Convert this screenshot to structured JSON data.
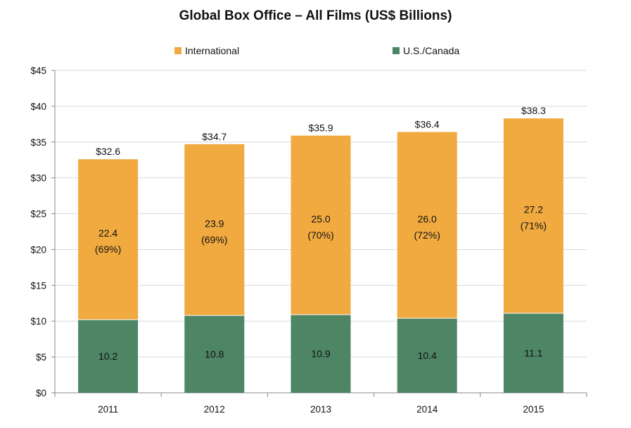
{
  "chart_data": {
    "type": "bar",
    "stacked": true,
    "title": "Global Box Office – All Films (US$ Billions)",
    "xlabel": "",
    "ylabel": "",
    "categories": [
      "2011",
      "2012",
      "2013",
      "2014",
      "2015"
    ],
    "ylim": [
      0,
      45
    ],
    "y_ticks": [
      0,
      5,
      10,
      15,
      20,
      25,
      30,
      35,
      40,
      45
    ],
    "y_tick_labels": [
      "$0",
      "$5",
      "$10",
      "$15",
      "$20",
      "$25",
      "$30",
      "$35",
      "$40",
      "$45"
    ],
    "series": [
      {
        "name": "U.S./Canada",
        "color": "#4e8565",
        "values": [
          10.2,
          10.8,
          10.9,
          10.4,
          11.1
        ],
        "labels": [
          "10.2",
          "10.8",
          "10.9",
          "10.4",
          "11.1"
        ]
      },
      {
        "name": "International",
        "color": "#f0aa40",
        "values": [
          22.4,
          23.9,
          25.0,
          26.0,
          27.2
        ],
        "labels": [
          "22.4",
          "23.9",
          "25.0",
          "26.0",
          "27.2"
        ],
        "share_labels": [
          "(69%)",
          "(69%)",
          "(70%)",
          "(72%)",
          "(71%)"
        ]
      }
    ],
    "totals": [
      32.6,
      34.7,
      35.9,
      36.4,
      38.3
    ],
    "total_labels": [
      "$32.6",
      "$34.7",
      "$35.9",
      "$36.4",
      "$38.3"
    ],
    "legend_position": "top",
    "legend_order": [
      "International",
      "U.S./Canada"
    ],
    "grid": true,
    "grid_color": "#d9d9d9"
  }
}
